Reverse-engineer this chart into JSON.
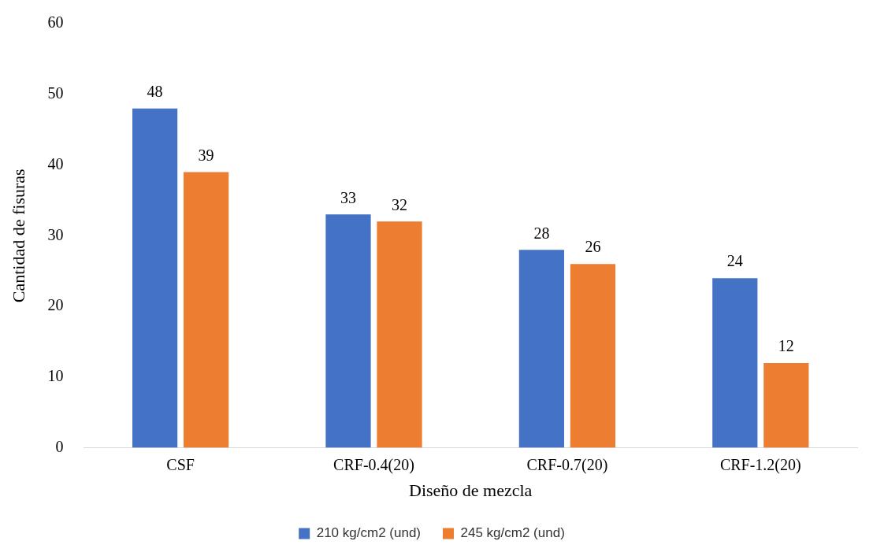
{
  "chart_data": {
    "type": "bar",
    "xlabel": "Diseño de mezcla",
    "ylabel": "Cantidad de fisuras",
    "categories": [
      "CSF",
      "CRF-0.4(20)",
      "CRF-0.7(20)",
      "CRF-1.2(20)"
    ],
    "series": [
      {
        "name": "210 kg/cm2 (und)",
        "color": "#4472c4",
        "values": [
          48,
          33,
          28,
          24
        ]
      },
      {
        "name": "245 kg/cm2 (und)",
        "color": "#ed7d31",
        "values": [
          39,
          32,
          26,
          12
        ]
      }
    ],
    "ylim": [
      0,
      60
    ],
    "yticks": [
      0,
      10,
      20,
      30,
      40,
      50,
      60
    ],
    "grid": false,
    "legend": "bottom",
    "data_labels": true
  }
}
